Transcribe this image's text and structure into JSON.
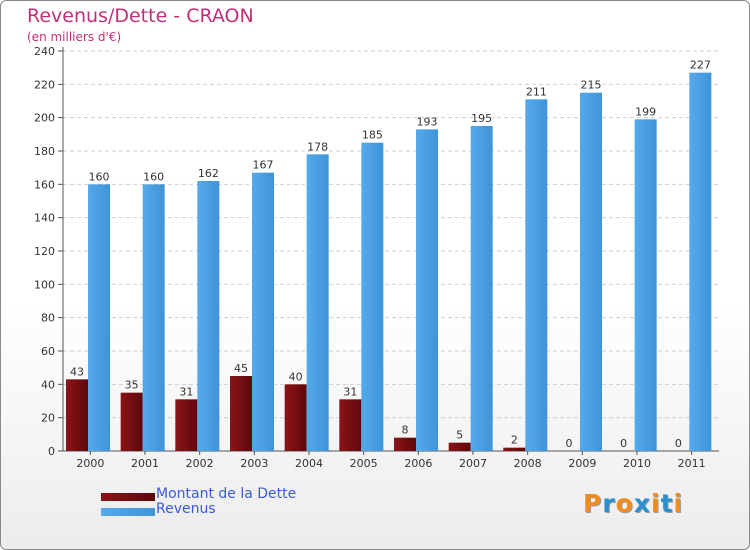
{
  "chart_data": {
    "type": "bar",
    "title": "Revenus/Dette - CRAON",
    "subtitle": "(en milliers d'€)",
    "categories": [
      "2000",
      "2001",
      "2002",
      "2003",
      "2004",
      "2005",
      "2006",
      "2007",
      "2008",
      "2009",
      "2010",
      "2011"
    ],
    "series": [
      {
        "name": "Montant de la Dette",
        "values": [
          43,
          35,
          31,
          45,
          40,
          31,
          8,
          5,
          2,
          0,
          0,
          0
        ],
        "color": "#7a0c10"
      },
      {
        "name": "Revenus",
        "values": [
          160,
          160,
          162,
          167,
          178,
          185,
          193,
          195,
          211,
          215,
          199,
          227
        ],
        "color": "#4a9fe3"
      }
    ],
    "ylim": [
      0,
      240
    ],
    "yticks": [
      0,
      20,
      40,
      60,
      80,
      100,
      120,
      140,
      160,
      180,
      200,
      220,
      240
    ],
    "grid": true,
    "legend": "bottom-left"
  },
  "logo": {
    "text": "Proxiti",
    "colors": [
      "#f08c1e",
      "#2a8fd0",
      "#f08c1e",
      "#2a8fd0",
      "#f08c1e",
      "#2a8fd0",
      "#f08c1e"
    ]
  }
}
